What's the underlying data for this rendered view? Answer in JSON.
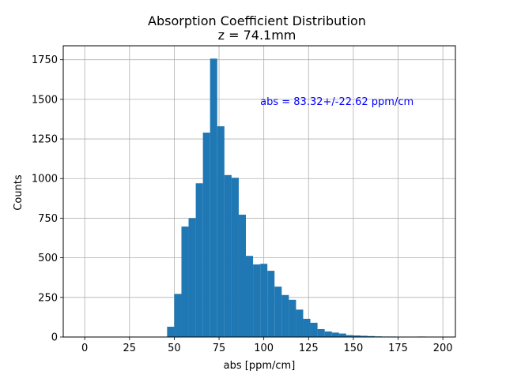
{
  "chart_data": {
    "type": "bar",
    "title": "Absorption Coefficient Distribution",
    "subtitle": "z = 74.1mm",
    "xlabel": "abs [ppm/cm]",
    "ylabel": "Counts",
    "xlim": [
      -12,
      207
    ],
    "ylim": [
      0,
      1838
    ],
    "xticks": [
      0,
      25,
      50,
      75,
      100,
      125,
      150,
      175,
      200
    ],
    "yticks": [
      0,
      250,
      500,
      750,
      1000,
      1250,
      1500,
      1750
    ],
    "grid": true,
    "bar_color": "#1f77b4",
    "annotation": {
      "text": "abs = 83.32+/-22.62 ppm/cm",
      "color": "#0000ff",
      "x": 98,
      "y": 1490
    },
    "bins": [
      {
        "x0": 46,
        "x1": 50,
        "value": 65
      },
      {
        "x0": 50,
        "x1": 54,
        "value": 272
      },
      {
        "x0": 54,
        "x1": 58,
        "value": 697
      },
      {
        "x0": 58,
        "x1": 62,
        "value": 750
      },
      {
        "x0": 62,
        "x1": 66,
        "value": 970
      },
      {
        "x0": 66,
        "x1": 70,
        "value": 1290
      },
      {
        "x0": 70,
        "x1": 74,
        "value": 1757
      },
      {
        "x0": 74,
        "x1": 78,
        "value": 1330
      },
      {
        "x0": 78,
        "x1": 82,
        "value": 1022
      },
      {
        "x0": 82,
        "x1": 86,
        "value": 1005
      },
      {
        "x0": 86,
        "x1": 90,
        "value": 772
      },
      {
        "x0": 90,
        "x1": 94,
        "value": 512
      },
      {
        "x0": 94,
        "x1": 98,
        "value": 458
      },
      {
        "x0": 98,
        "x1": 102,
        "value": 462
      },
      {
        "x0": 102,
        "x1": 106,
        "value": 418
      },
      {
        "x0": 106,
        "x1": 110,
        "value": 318
      },
      {
        "x0": 110,
        "x1": 114,
        "value": 265
      },
      {
        "x0": 114,
        "x1": 118,
        "value": 235
      },
      {
        "x0": 118,
        "x1": 122,
        "value": 173
      },
      {
        "x0": 122,
        "x1": 126,
        "value": 115
      },
      {
        "x0": 126,
        "x1": 130,
        "value": 90
      },
      {
        "x0": 130,
        "x1": 134,
        "value": 50
      },
      {
        "x0": 134,
        "x1": 138,
        "value": 35
      },
      {
        "x0": 138,
        "x1": 142,
        "value": 28
      },
      {
        "x0": 142,
        "x1": 146,
        "value": 22
      },
      {
        "x0": 146,
        "x1": 150,
        "value": 12
      },
      {
        "x0": 150,
        "x1": 154,
        "value": 10
      },
      {
        "x0": 154,
        "x1": 158,
        "value": 8
      },
      {
        "x0": 158,
        "x1": 162,
        "value": 6
      },
      {
        "x0": 162,
        "x1": 166,
        "value": 4
      },
      {
        "x0": 166,
        "x1": 170,
        "value": 3
      },
      {
        "x0": 170,
        "x1": 174,
        "value": 3
      },
      {
        "x0": 174,
        "x1": 178,
        "value": 2
      },
      {
        "x0": 178,
        "x1": 182,
        "value": 1
      },
      {
        "x0": 182,
        "x1": 186,
        "value": 2
      },
      {
        "x0": 186,
        "x1": 190,
        "value": 3
      },
      {
        "x0": 190,
        "x1": 194,
        "value": 2
      }
    ]
  }
}
